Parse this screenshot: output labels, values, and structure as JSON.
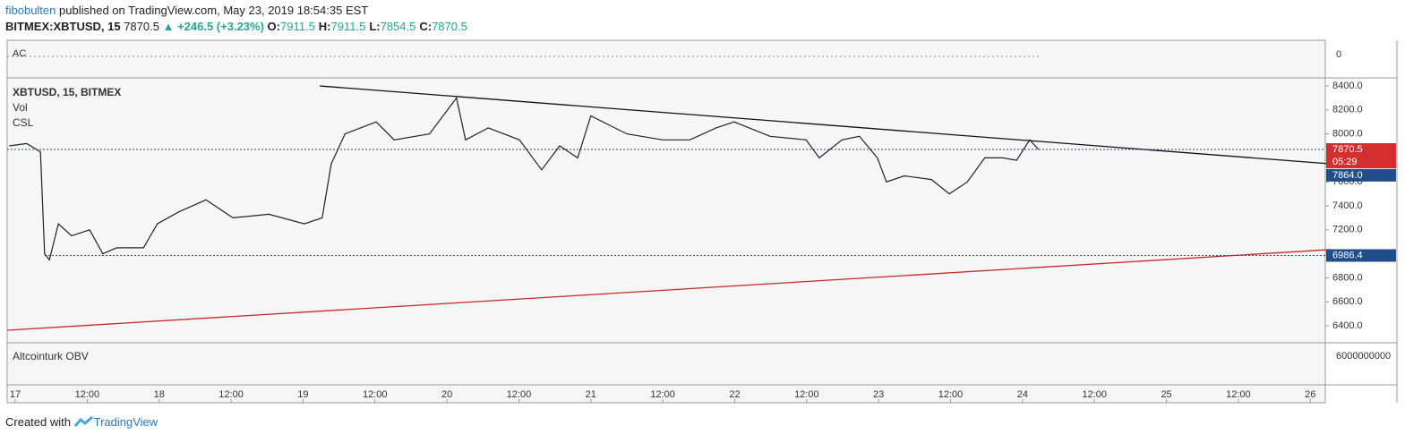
{
  "header": {
    "user": "fibobulten",
    "published": "published on TradingView.com, May 23, 2019 18:54:35 EST",
    "symbol": "BITMEX:XBTUSD, 15",
    "last": "7870.5",
    "change": "▲ +246.5 (+3.23%)",
    "ohlc": [
      {
        "label": "O:",
        "value": "7911.5"
      },
      {
        "label": "H:",
        "value": "7911.5"
      },
      {
        "label": "L:",
        "value": "7854.5"
      },
      {
        "label": "C:",
        "value": "7870.5"
      }
    ]
  },
  "panes": {
    "ac_label": "AC",
    "ac_tick": "0",
    "main_label": "XBTUSD, 15, BITMEX",
    "vol_label": "Vol",
    "csl_label": "CSL",
    "obv_label": "Altcointurk OBV",
    "obv_tick": "6000000000",
    "countdown": "05:29"
  },
  "footer": {
    "created": "Created with",
    "brand": "TradingView"
  },
  "chart_data": {
    "type": "line",
    "color": "#222222",
    "x": [
      -1.0,
      1.9,
      4.2,
      4.9,
      5.7,
      7.2,
      9.4,
      12.4,
      14.6,
      16.9,
      21.4,
      23.7,
      27.3,
      31.8,
      36.3,
      42.3,
      48.2,
      51.2,
      52.7,
      55.0,
      60.2,
      63.2,
      69.1,
      73.6,
      75.1,
      78.9,
      84.1,
      87.8,
      90.8,
      93.8,
      96.0,
      102.0,
      108.0,
      112.5,
      116.9,
      119.9,
      125.9,
      131.9,
      134.1,
      137.9,
      140.8,
      143.8,
      145.3,
      148.3,
      152.8,
      155.8,
      158.8,
      161.7,
      164.7,
      167.0,
      169.2,
      170.7
    ],
    "values": [
      7900,
      7920,
      7850,
      7000,
      6950,
      7250,
      7150,
      7200,
      7000,
      7050,
      7050,
      7250,
      7350,
      7450,
      7300,
      7330,
      7250,
      7300,
      7750,
      8000,
      8100,
      7950,
      8000,
      8300,
      7950,
      8050,
      7950,
      7700,
      7900,
      7800,
      8150,
      8000,
      7950,
      7950,
      8050,
      8100,
      7980,
      7950,
      7800,
      7950,
      7980,
      7800,
      7600,
      7650,
      7620,
      7500,
      7600,
      7800,
      7800,
      7780,
      7950,
      7870
    ],
    "xlim": [
      -1.35,
      218.5
    ],
    "ylim": [
      6266,
      8460
    ],
    "yticks": [
      {
        "value": 6400,
        "label": "6400.0"
      },
      {
        "value": 6600,
        "label": "6600.0"
      },
      {
        "value": 6800,
        "label": "6800.0"
      },
      {
        "value": 7000,
        "label": "7000.0"
      },
      {
        "value": 7200,
        "label": "7200.0"
      },
      {
        "value": 7400,
        "label": "7400.0"
      },
      {
        "value": 7600,
        "label": "7600.0"
      },
      {
        "value": 7800,
        "label": "7800.0"
      },
      {
        "value": 8000,
        "label": "8000.0"
      },
      {
        "value": 8200,
        "label": "8200.0"
      },
      {
        "value": 8400,
        "label": "8400.0"
      }
    ],
    "xticks": [
      {
        "value": 0,
        "label": "17"
      },
      {
        "value": 12,
        "label": "12:00"
      },
      {
        "value": 24,
        "label": "18"
      },
      {
        "value": 36,
        "label": "12:00"
      },
      {
        "value": 48,
        "label": "19"
      },
      {
        "value": 60,
        "label": "12:00"
      },
      {
        "value": 72,
        "label": "20"
      },
      {
        "value": 84,
        "label": "12:00"
      },
      {
        "value": 96,
        "label": "21"
      },
      {
        "value": 108,
        "label": "12:00"
      },
      {
        "value": 120,
        "label": "22"
      },
      {
        "value": 132,
        "label": "12:00"
      },
      {
        "value": 144,
        "label": "23"
      },
      {
        "value": 156,
        "label": "12:00"
      },
      {
        "value": 168,
        "label": "24"
      },
      {
        "value": 180,
        "label": "12:00"
      },
      {
        "value": 192,
        "label": "25"
      },
      {
        "value": 204,
        "label": "12:00"
      },
      {
        "value": 216,
        "label": "26"
      }
    ],
    "price_lines": [
      {
        "value": 7870.5,
        "label": "7870.5",
        "color": "#d32f2f"
      },
      {
        "value": 7864.0,
        "label": "7864.0",
        "color": "#1e4f8a"
      },
      {
        "value": 6986.4,
        "label": "6986.4",
        "color": "#1e4f8a"
      }
    ],
    "trendlines": [
      {
        "color": "#111111",
        "x": [
          50.8,
          219.2
        ],
        "values": [
          8400,
          7751
        ]
      },
      {
        "color": "#c62828",
        "x": [
          -1.3,
          219.2
        ],
        "values": [
          6363,
          7035
        ]
      }
    ]
  }
}
